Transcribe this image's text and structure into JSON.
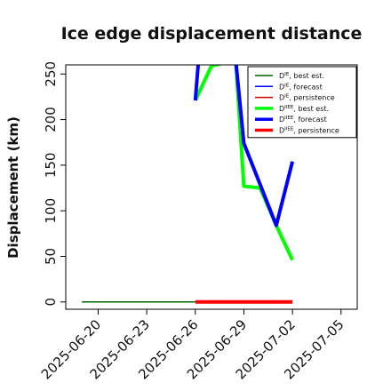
{
  "chart_data": {
    "type": "line",
    "title": "Ice edge displacement distance",
    "ylabel": "Displacement (km)",
    "xlabel": "",
    "xlim": [
      "2025-06-18",
      "2025-07-06"
    ],
    "ylim": [
      -8,
      260
    ],
    "x_ticks": [
      "2025-06-20",
      "2025-06-23",
      "2025-06-26",
      "2025-06-29",
      "2025-07-02",
      "2025-07-05"
    ],
    "highlighted_tick": "2025-06-26",
    "highlight_color": "#228b22",
    "y_ticks": [
      0,
      50,
      100,
      150,
      200,
      250
    ],
    "legend_position": "top-right",
    "series": [
      {
        "name_base": "D",
        "name_sup": "IE",
        "name_rest": ", best est.",
        "color": "#006400",
        "width": 1.5,
        "points": [
          [
            "2025-06-19",
            0
          ],
          [
            "2025-06-26",
            0
          ]
        ]
      },
      {
        "name_base": "D",
        "name_sup": "IE",
        "name_rest": ", forecast",
        "color": "#0000ff",
        "width": 1.5,
        "points": []
      },
      {
        "name_base": "D",
        "name_sup": "IE",
        "name_rest": ", persistence",
        "color": "#cc0000",
        "width": 1.5,
        "points": []
      },
      {
        "name_base": "D",
        "name_sup": "IIEE",
        "name_rest": ", best est.",
        "color": "#00ff00",
        "width": 4,
        "points": [
          [
            "2025-06-26",
            221
          ],
          [
            "2025-06-27",
            259
          ],
          [
            "2025-06-28.5",
            265
          ],
          [
            "2025-06-29",
            127
          ],
          [
            "2025-06-30",
            125
          ],
          [
            "2025-07-01",
            84
          ],
          [
            "2025-07-02",
            46
          ]
        ]
      },
      {
        "name_base": "D",
        "name_sup": "IIEE",
        "name_rest": ", forecast",
        "color": "#0000ff",
        "width": 4,
        "points": [
          [
            "2025-06-26",
            221
          ],
          [
            "2025-06-26.2",
            265
          ],
          [
            "2025-06-28.5",
            265
          ],
          [
            "2025-06-29",
            174
          ],
          [
            "2025-07-01",
            84
          ],
          [
            "2025-07-02",
            154
          ]
        ]
      },
      {
        "name_base": "D",
        "name_sup": "IIEE",
        "name_rest": ", persistence",
        "color": "#ff0000",
        "width": 4,
        "points": [
          [
            "2025-06-26",
            0
          ],
          [
            "2025-07-02",
            0
          ]
        ]
      }
    ]
  }
}
